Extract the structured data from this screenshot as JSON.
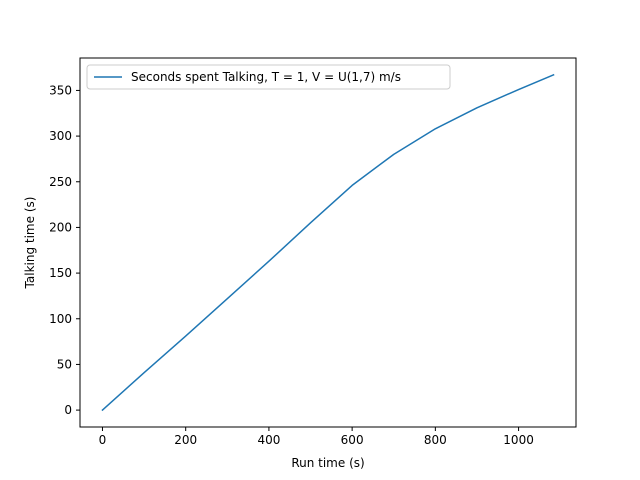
{
  "chart_data": {
    "type": "line",
    "title": "",
    "xlabel": "Run time (s)",
    "ylabel": "Talking time (s)",
    "xlim": [
      -54,
      1138
    ],
    "ylim": [
      -18.5,
      385.5
    ],
    "xticks": [
      0,
      200,
      400,
      600,
      800,
      1000
    ],
    "yticks": [
      0,
      50,
      100,
      150,
      200,
      250,
      300,
      350
    ],
    "grid": false,
    "legend_position": "upper-left",
    "series": [
      {
        "name": "Seconds spent Talking, T = 1, V = U(1,7) m/s",
        "color": "#1f77b4",
        "x": [
          0,
          100,
          200,
          300,
          400,
          500,
          600,
          700,
          800,
          900,
          1000,
          1084
        ],
        "y": [
          0,
          41,
          81,
          122,
          163,
          205,
          246,
          280,
          308,
          331,
          351,
          367
        ]
      }
    ]
  }
}
